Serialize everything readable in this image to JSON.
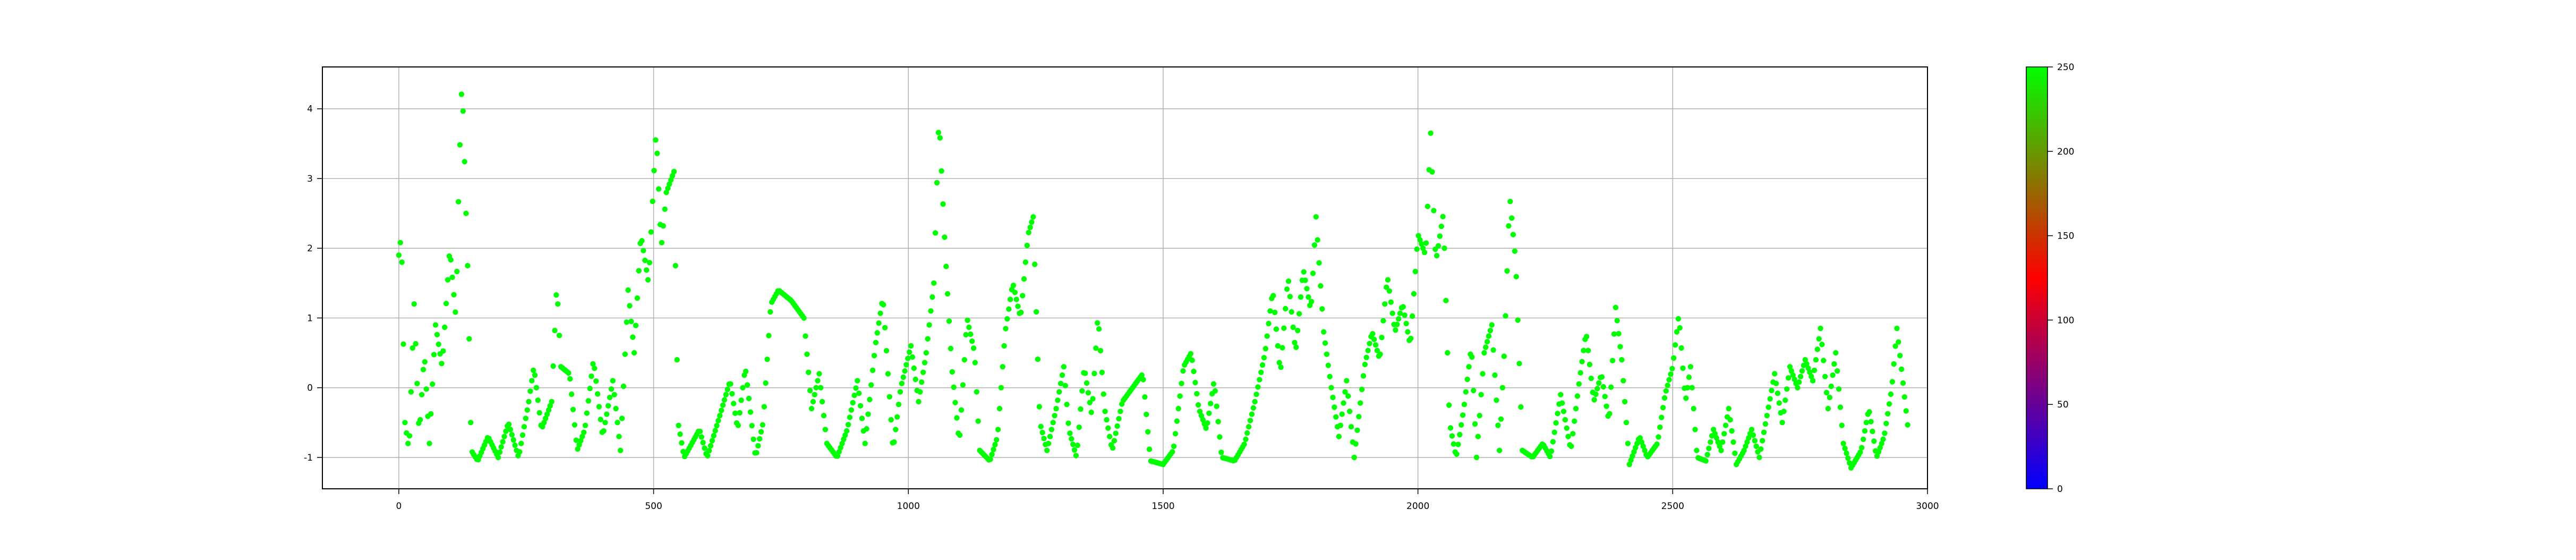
{
  "chart_data": {
    "type": "scatter",
    "title": "",
    "xlabel": "",
    "ylabel": "",
    "xlim": [
      -150,
      3000
    ],
    "ylim": [
      -1.45,
      4.6
    ],
    "xticks": [
      0,
      500,
      1000,
      1500,
      2000,
      2500,
      3000
    ],
    "yticks": [
      -1,
      0,
      1,
      2,
      3,
      4
    ],
    "grid": true,
    "marker_color": "#00ff00",
    "x_start": 0,
    "x_step": 3,
    "anchors": [
      [
        0,
        1.9
      ],
      [
        5,
        2.2
      ],
      [
        8,
        1.0
      ],
      [
        12,
        -0.5
      ],
      [
        20,
        -0.9
      ],
      [
        30,
        1.2
      ],
      [
        40,
        -0.7
      ],
      [
        50,
        0.5
      ],
      [
        60,
        -0.8
      ],
      [
        72,
        0.9
      ],
      [
        85,
        0.3
      ],
      [
        100,
        2.0
      ],
      [
        112,
        1.0
      ],
      [
        118,
        3.0
      ],
      [
        124,
        4.45
      ],
      [
        130,
        3.0
      ],
      [
        136,
        1.5
      ],
      [
        142,
        -0.9
      ],
      [
        155,
        -1.05
      ],
      [
        175,
        -0.7
      ],
      [
        195,
        -1.0
      ],
      [
        215,
        -0.5
      ],
      [
        235,
        -1.0
      ],
      [
        255,
        -0.2
      ],
      [
        265,
        0.3
      ],
      [
        280,
        -0.6
      ],
      [
        300,
        -0.2
      ],
      [
        310,
        1.5
      ],
      [
        318,
        0.3
      ],
      [
        335,
        0.2
      ],
      [
        350,
        -0.9
      ],
      [
        365,
        -0.6
      ],
      [
        382,
        0.4
      ],
      [
        400,
        -0.7
      ],
      [
        420,
        0.1
      ],
      [
        435,
        -0.9
      ],
      [
        450,
        1.4
      ],
      [
        462,
        0.5
      ],
      [
        475,
        2.2
      ],
      [
        490,
        1.5
      ],
      [
        505,
        3.7
      ],
      [
        515,
        2.0
      ],
      [
        525,
        2.8
      ],
      [
        540,
        3.1
      ],
      [
        548,
        -0.5
      ],
      [
        560,
        -1.0
      ],
      [
        590,
        -0.6
      ],
      [
        605,
        -1.0
      ],
      [
        630,
        -0.4
      ],
      [
        650,
        0.1
      ],
      [
        665,
        -0.6
      ],
      [
        680,
        0.3
      ],
      [
        700,
        -1.0
      ],
      [
        715,
        -0.5
      ],
      [
        730,
        1.2
      ],
      [
        745,
        1.4
      ],
      [
        770,
        1.25
      ],
      [
        795,
        1.0
      ],
      [
        810,
        -0.3
      ],
      [
        825,
        0.2
      ],
      [
        840,
        -0.8
      ],
      [
        860,
        -1.0
      ],
      [
        880,
        -0.6
      ],
      [
        900,
        0.1
      ],
      [
        915,
        -0.8
      ],
      [
        935,
        0.6
      ],
      [
        950,
        1.3
      ],
      [
        970,
        -0.9
      ],
      [
        985,
        0.0
      ],
      [
        1005,
        0.6
      ],
      [
        1020,
        -0.2
      ],
      [
        1035,
        0.5
      ],
      [
        1050,
        1.5
      ],
      [
        1060,
        3.9
      ],
      [
        1072,
        2.0
      ],
      [
        1085,
        0.3
      ],
      [
        1100,
        -0.8
      ],
      [
        1115,
        1.0
      ],
      [
        1130,
        0.5
      ],
      [
        1140,
        -0.9
      ],
      [
        1160,
        -1.05
      ],
      [
        1175,
        -0.7
      ],
      [
        1190,
        0.8
      ],
      [
        1205,
        1.5
      ],
      [
        1220,
        1.0
      ],
      [
        1235,
        2.2
      ],
      [
        1245,
        2.45
      ],
      [
        1258,
        -0.5
      ],
      [
        1272,
        -0.9
      ],
      [
        1290,
        -0.3
      ],
      [
        1305,
        0.3
      ],
      [
        1315,
        -0.6
      ],
      [
        1330,
        -1.0
      ],
      [
        1345,
        0.3
      ],
      [
        1360,
        -0.4
      ],
      [
        1372,
        1.05
      ],
      [
        1385,
        -0.3
      ],
      [
        1400,
        -0.9
      ],
      [
        1420,
        -0.2
      ],
      [
        1440,
        0.0
      ],
      [
        1460,
        0.2
      ],
      [
        1475,
        -1.05
      ],
      [
        1500,
        -1.1
      ],
      [
        1520,
        -0.9
      ],
      [
        1540,
        0.3
      ],
      [
        1555,
        0.5
      ],
      [
        1570,
        -0.3
      ],
      [
        1585,
        -0.6
      ],
      [
        1600,
        0.1
      ],
      [
        1615,
        -1.0
      ],
      [
        1640,
        -1.05
      ],
      [
        1660,
        -0.8
      ],
      [
        1680,
        -0.2
      ],
      [
        1700,
        0.5
      ],
      [
        1715,
        1.4
      ],
      [
        1730,
        0.2
      ],
      [
        1745,
        1.6
      ],
      [
        1760,
        0.5
      ],
      [
        1775,
        1.7
      ],
      [
        1790,
        1.1
      ],
      [
        1800,
        2.45
      ],
      [
        1815,
        0.8
      ],
      [
        1830,
        0.0
      ],
      [
        1845,
        -0.7
      ],
      [
        1860,
        0.1
      ],
      [
        1875,
        -1.0
      ],
      [
        1895,
        0.3
      ],
      [
        1910,
        0.8
      ],
      [
        1925,
        0.4
      ],
      [
        1940,
        1.6
      ],
      [
        1955,
        0.8
      ],
      [
        1970,
        1.2
      ],
      [
        1985,
        0.6
      ],
      [
        2000,
        2.2
      ],
      [
        2015,
        1.9
      ],
      [
        2025,
        3.65
      ],
      [
        2035,
        1.8
      ],
      [
        2050,
        2.5
      ],
      [
        2062,
        -0.5
      ],
      [
        2075,
        -1.0
      ],
      [
        2090,
        -0.3
      ],
      [
        2105,
        0.6
      ],
      [
        2115,
        -1.0
      ],
      [
        2130,
        0.5
      ],
      [
        2145,
        0.9
      ],
      [
        2160,
        -0.9
      ],
      [
        2170,
        0.6
      ],
      [
        2180,
        2.75
      ],
      [
        2192,
        1.8
      ],
      [
        2205,
        -0.9
      ],
      [
        2225,
        -1.0
      ],
      [
        2245,
        -0.8
      ],
      [
        2260,
        -1.0
      ],
      [
        2280,
        -0.1
      ],
      [
        2300,
        -0.9
      ],
      [
        2315,
        0.0
      ],
      [
        2330,
        0.8
      ],
      [
        2345,
        -0.2
      ],
      [
        2360,
        0.2
      ],
      [
        2375,
        -0.5
      ],
      [
        2388,
        1.15
      ],
      [
        2400,
        0.4
      ],
      [
        2415,
        -1.1
      ],
      [
        2435,
        -0.7
      ],
      [
        2450,
        -1.0
      ],
      [
        2470,
        -0.8
      ],
      [
        2485,
        -0.1
      ],
      [
        2500,
        0.3
      ],
      [
        2512,
        1.05
      ],
      [
        2525,
        -0.2
      ],
      [
        2535,
        0.3
      ],
      [
        2548,
        -1.0
      ],
      [
        2565,
        -1.05
      ],
      [
        2580,
        -0.6
      ],
      [
        2595,
        -0.9
      ],
      [
        2610,
        -0.3
      ],
      [
        2625,
        -1.1
      ],
      [
        2640,
        -0.9
      ],
      [
        2655,
        -0.6
      ],
      [
        2670,
        -1.0
      ],
      [
        2685,
        -0.4
      ],
      [
        2700,
        0.2
      ],
      [
        2715,
        -0.5
      ],
      [
        2730,
        0.3
      ],
      [
        2745,
        0.0
      ],
      [
        2760,
        0.4
      ],
      [
        2775,
        0.1
      ],
      [
        2790,
        0.85
      ],
      [
        2805,
        -0.3
      ],
      [
        2820,
        0.5
      ],
      [
        2835,
        -0.8
      ],
      [
        2850,
        -1.15
      ],
      [
        2870,
        -0.9
      ],
      [
        2885,
        -0.3
      ],
      [
        2900,
        -1.0
      ],
      [
        2915,
        -0.7
      ],
      [
        2930,
        0.0
      ],
      [
        2940,
        0.85
      ],
      [
        2950,
        0.2
      ],
      [
        2962,
        -0.6
      ]
    ],
    "colorbar": {
      "range": [
        0,
        250
      ],
      "ticks": [
        0,
        50,
        100,
        150,
        200,
        250
      ],
      "colormap": [
        "#0000ff",
        "#ff0000",
        "#00ff00"
      ]
    }
  }
}
